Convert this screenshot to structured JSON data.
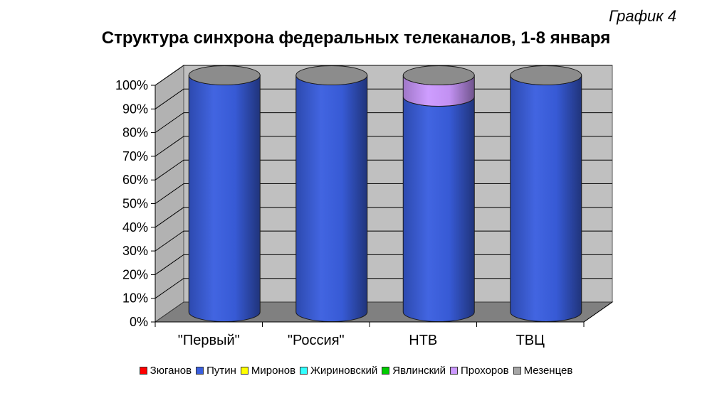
{
  "chart_data": {
    "type": "bar",
    "subtype": "stacked-100-percent-cylinder-3d",
    "label": "График 4",
    "title": "Структура синхрона федеральных телеканалов, 1-8 января",
    "categories": [
      "\"Первый\"",
      "\"Россия\"",
      "НТВ",
      "ТВЦ"
    ],
    "y_ticks": [
      "0%",
      "10%",
      "20%",
      "30%",
      "40%",
      "50%",
      "60%",
      "70%",
      "80%",
      "90%",
      "100%"
    ],
    "ylim": [
      0,
      100
    ],
    "grid": true,
    "legend_position": "bottom",
    "series": [
      {
        "name": "Зюганов",
        "color": "#ff0000",
        "values": [
          0,
          0,
          0,
          0
        ]
      },
      {
        "name": "Путин",
        "color": "#3a5fe0",
        "values": [
          100,
          100,
          91,
          100
        ]
      },
      {
        "name": "Миронов",
        "color": "#ffff00",
        "values": [
          0,
          0,
          0,
          0
        ]
      },
      {
        "name": "Жириновский",
        "color": "#33ffff",
        "values": [
          0,
          0,
          0,
          0
        ]
      },
      {
        "name": "Явлинский",
        "color": "#00cc00",
        "values": [
          0,
          0,
          0,
          0
        ]
      },
      {
        "name": "Прохоров",
        "color": "#cc99ff",
        "values": [
          0,
          0,
          9,
          0
        ]
      },
      {
        "name": "Мезенцев",
        "color": "#a6a6a6",
        "values": [
          0,
          0,
          0,
          0
        ]
      }
    ],
    "colors": {
      "wall": "#c0c0c0",
      "side_wall": "#b2b2b2",
      "floor": "#808080",
      "cylinder_top": "#8c8c8c"
    }
  }
}
